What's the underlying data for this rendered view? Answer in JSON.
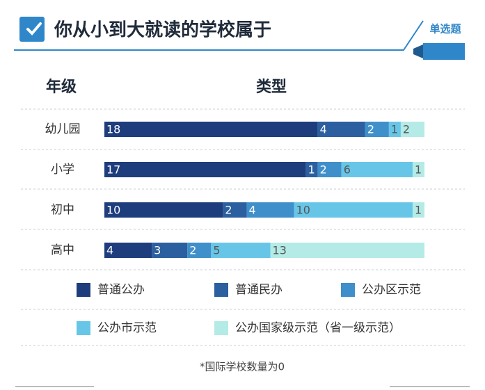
{
  "chart_data": {
    "type": "bar",
    "orientation": "horizontal",
    "stacked": true,
    "title": "你从小到大就读的学校属于",
    "tag": "单选题",
    "category_header": "年级",
    "series_header": "类型",
    "note": "*国际学校数量为0",
    "categories": [
      "幼儿园",
      "小学",
      "初中",
      "高中"
    ],
    "series": [
      {
        "name": "普通公办",
        "color": "#1e3d7c",
        "values": [
          18,
          17,
          10,
          4
        ]
      },
      {
        "name": "普通民办",
        "color": "#2b5f9f",
        "values": [
          4,
          1,
          2,
          3
        ]
      },
      {
        "name": "公办区示范",
        "color": "#3f8fca",
        "values": [
          2,
          2,
          4,
          2
        ]
      },
      {
        "name": "公办市示范",
        "color": "#67c6e8",
        "values": [
          1,
          6,
          10,
          5
        ]
      },
      {
        "name": "公办国家级示范（省一级示范）",
        "color": "#b4ebe6",
        "values": [
          2,
          1,
          1,
          13
        ]
      }
    ]
  }
}
